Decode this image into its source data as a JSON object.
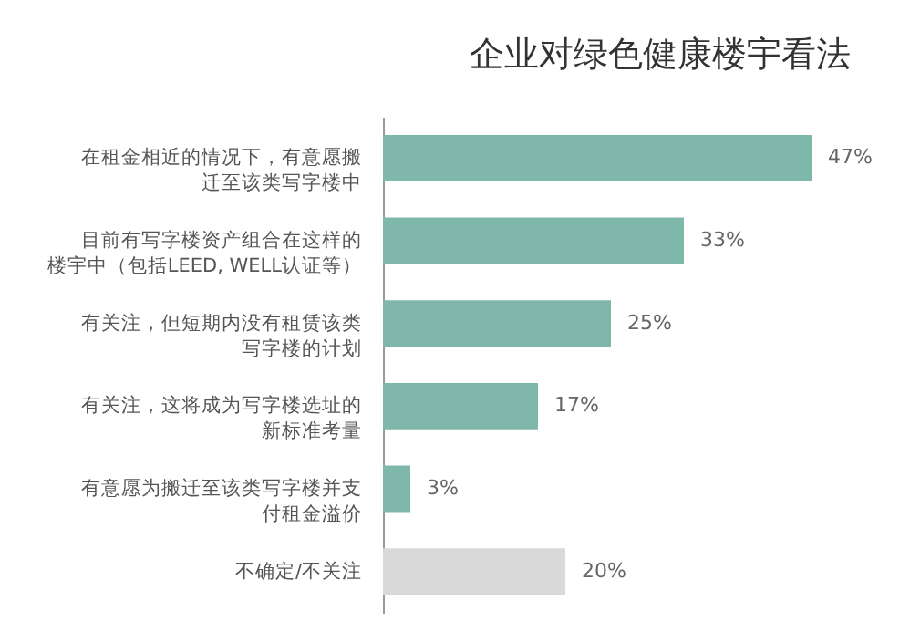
{
  "chart_data": {
    "type": "bar",
    "orientation": "horizontal",
    "title": "企业对绿色健康楼宇看法",
    "categories": [
      "在租金相近的情况下，有意愿搬迁至该类写字楼中",
      "目前有写字楼资产组合在这样的楼宇中（包括LEED, WELL认证等）",
      "有关注，但短期内没有租赁该类写字楼的计划",
      "有关注，这将成为写字楼选址的新标准考量",
      "有意愿为搬迁至该类写字楼并支付租金溢价",
      "不确定/不关注"
    ],
    "values": [
      47,
      33,
      25,
      17,
      3,
      20
    ],
    "colors": [
      "#7fb8ab",
      "#7fb8ab",
      "#7fb8ab",
      "#7fb8ab",
      "#7fb8ab",
      "#d9d9d9"
    ],
    "value_labels": [
      "47%",
      "33%",
      "25%",
      "17%",
      "3%",
      "20%"
    ]
  }
}
